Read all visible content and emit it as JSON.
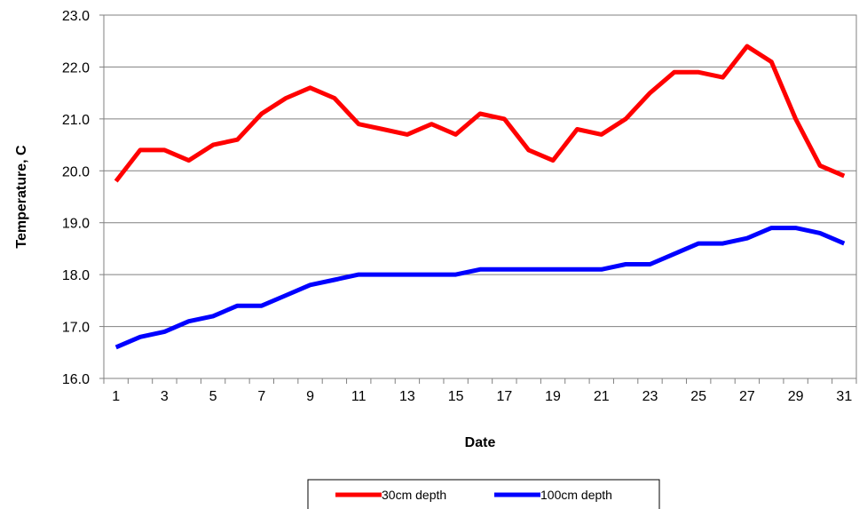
{
  "chart_data": {
    "type": "line",
    "title": "",
    "xlabel": "Date",
    "ylabel": "Temperature, C",
    "x": [
      1,
      2,
      3,
      4,
      5,
      6,
      7,
      8,
      9,
      10,
      11,
      12,
      13,
      14,
      15,
      16,
      17,
      18,
      19,
      20,
      21,
      22,
      23,
      24,
      25,
      26,
      27,
      28,
      29,
      30,
      31
    ],
    "x_tick_labels": [
      "1",
      "3",
      "5",
      "7",
      "9",
      "11",
      "13",
      "15",
      "17",
      "19",
      "21",
      "23",
      "25",
      "27",
      "29",
      "31"
    ],
    "y_tick_labels": [
      "16.0",
      "17.0",
      "18.0",
      "19.0",
      "20.0",
      "21.0",
      "22.0",
      "23.0"
    ],
    "ylim": [
      16.0,
      23.0
    ],
    "xlim": [
      0.5,
      31.5
    ],
    "grid": "horizontal",
    "legend_position": "bottom",
    "series": [
      {
        "name": "30cm depth",
        "color": "#ff0000",
        "values": [
          19.8,
          20.4,
          20.4,
          20.2,
          20.5,
          20.6,
          21.1,
          21.4,
          21.6,
          21.4,
          20.9,
          20.8,
          20.7,
          20.9,
          20.7,
          21.1,
          21.0,
          20.4,
          20.2,
          20.8,
          20.7,
          21.0,
          21.5,
          21.9,
          21.9,
          21.8,
          22.4,
          22.1,
          21.0,
          20.1,
          19.9
        ]
      },
      {
        "name": "100cm depth",
        "color": "#0000ff",
        "values": [
          16.6,
          16.8,
          16.9,
          17.1,
          17.2,
          17.4,
          17.4,
          17.6,
          17.8,
          17.9,
          18.0,
          18.0,
          18.0,
          18.0,
          18.0,
          18.1,
          18.1,
          18.1,
          18.1,
          18.1,
          18.1,
          18.2,
          18.2,
          18.4,
          18.6,
          18.6,
          18.7,
          18.9,
          18.9,
          18.8,
          18.6
        ]
      }
    ]
  }
}
